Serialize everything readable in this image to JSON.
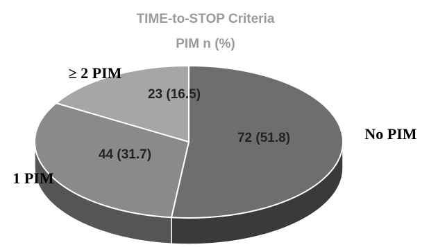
{
  "chart_data": {
    "type": "pie",
    "title": "TIME-to-STOP Criteria",
    "subtitle": "PIM n (%)",
    "slices": [
      {
        "name": "No PIM",
        "label": "72 (51.8)",
        "count": 72,
        "percent": 51.8,
        "color": "#6e6e6e",
        "side_color": "#3a3a3a"
      },
      {
        "name": "1 PIM",
        "label": "44 (31.7)",
        "count": 44,
        "percent": 31.7,
        "color": "#8a8a8a",
        "side_color": "#555555"
      },
      {
        "name": "≥ 2 PIM",
        "label": "23 (16.5)",
        "count": 23,
        "percent": 16.5,
        "color": "#a6a6a6",
        "side_color": "#777777"
      }
    ],
    "style": "3d"
  }
}
